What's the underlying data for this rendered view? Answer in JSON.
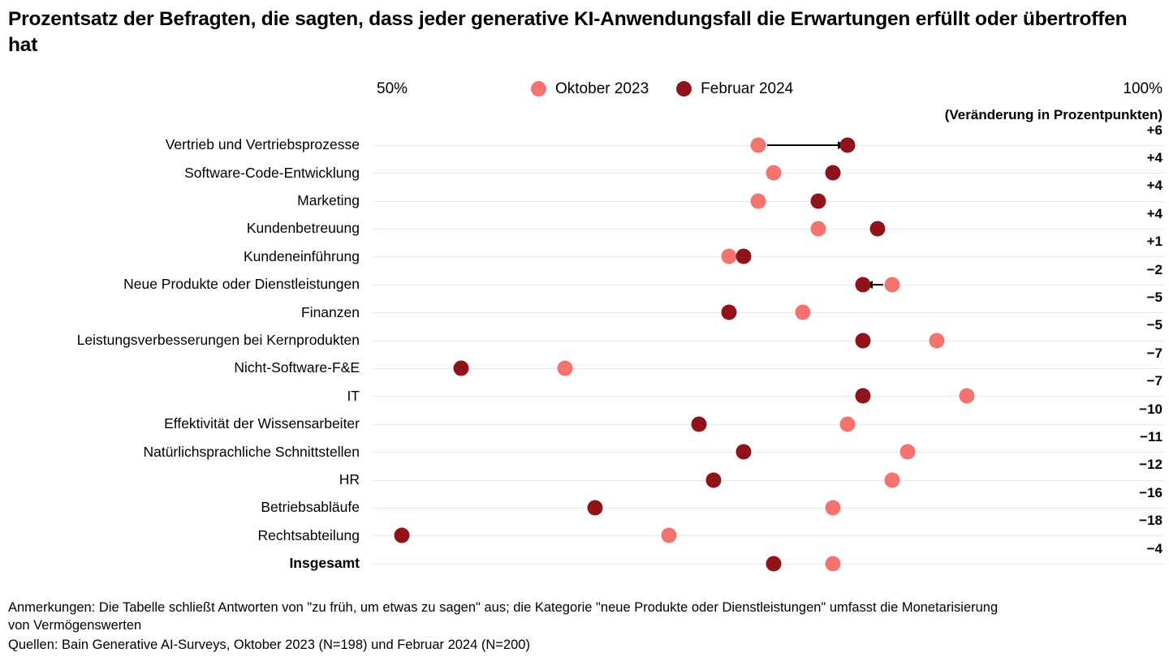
{
  "title": "Prozentsatz der Befragten, die sagten, dass jeder generative KI-Anwendungsfall die Erwartungen erfüllt oder übertroffen hat",
  "colors": {
    "oct2023": "#f4736f",
    "feb2024": "#8f1319",
    "gridline": "#e7e7e7",
    "arrow": "#000000"
  },
  "legend": [
    {
      "label": "Oktober 2023",
      "color": "#f4736f"
    },
    {
      "label": "Februar 2024",
      "color": "#8f1319"
    }
  ],
  "change_header": "(Veränderung in Prozentpunkten)",
  "chart_data": {
    "type": "scatter",
    "subtype": "dumbbell-dot-plot",
    "axis": {
      "min": 50,
      "max": 100,
      "min_label": "50%",
      "max_label": "100%",
      "unit": "%"
    },
    "series_names": [
      "Oktober 2023",
      "Februar 2024"
    ],
    "rows": [
      {
        "label": "Vertrieb und Vertriebsprozesse",
        "oct2023": 76,
        "feb2024": 82,
        "change": "+6",
        "arrow": "right"
      },
      {
        "label": "Software-Code-Entwicklung",
        "oct2023": 77,
        "feb2024": 81,
        "change": "+4"
      },
      {
        "label": "Marketing",
        "oct2023": 76,
        "feb2024": 80,
        "change": "+4"
      },
      {
        "label": "Kundenbetreuung",
        "oct2023": 80,
        "feb2024": 84,
        "change": "+4"
      },
      {
        "label": "Kundeneinführung",
        "oct2023": 74,
        "feb2024": 75,
        "change": "+1"
      },
      {
        "label": "Neue Produkte oder Dienstleistungen",
        "oct2023": 85,
        "feb2024": 83,
        "change": "−2",
        "arrow": "left"
      },
      {
        "label": "Finanzen",
        "oct2023": 79,
        "feb2024": 74,
        "change": "−5"
      },
      {
        "label": "Leistungsverbesserungen bei Kernprodukten",
        "oct2023": 88,
        "feb2024": 83,
        "change": "−5"
      },
      {
        "label": "Nicht-Software-F&E",
        "oct2023": 63,
        "feb2024": 56,
        "change": "−7"
      },
      {
        "label": "IT",
        "oct2023": 90,
        "feb2024": 83,
        "change": "−7"
      },
      {
        "label": "Effektivität der Wissensarbeiter",
        "oct2023": 82,
        "feb2024": 72,
        "change": "−10"
      },
      {
        "label": "Natürlichsprachliche Schnittstellen",
        "oct2023": 86,
        "feb2024": 75,
        "change": "−11"
      },
      {
        "label": "HR",
        "oct2023": 85,
        "feb2024": 73,
        "change": "−12"
      },
      {
        "label": "Betriebsabläufe",
        "oct2023": 81,
        "feb2024": 65,
        "change": "−16"
      },
      {
        "label": "Rechtsabteilung",
        "oct2023": 70,
        "feb2024": 52,
        "change": "−18"
      },
      {
        "label": "Insgesamt",
        "oct2023": 81,
        "feb2024": 77,
        "change": "−4",
        "bold": true
      }
    ]
  },
  "notes": {
    "anmerkungen": "Anmerkungen: Die Tabelle schließt Antworten von \"zu früh, um etwas zu sagen\" aus; die Kategorie \"neue Produkte oder Dienstleistungen\" umfasst die Monetarisierung von Vermögenswerten",
    "quellen": "Quellen: Bain Generative AI-Surveys, Oktober 2023 (N=198) und Februar 2024 (N=200)"
  }
}
